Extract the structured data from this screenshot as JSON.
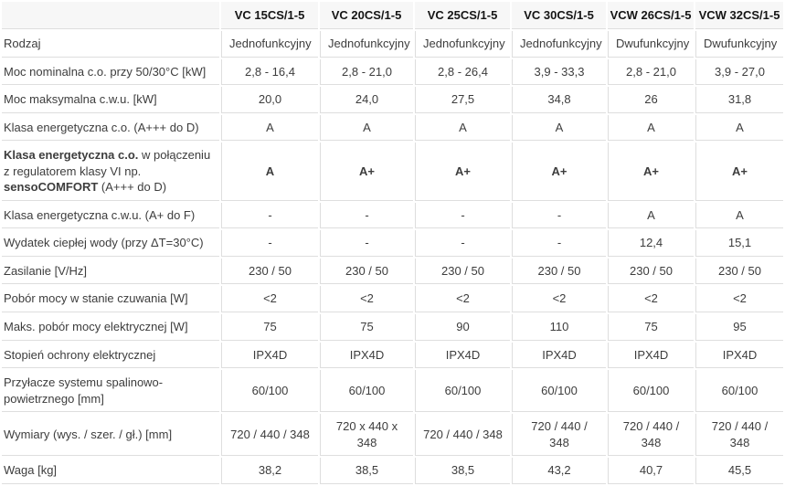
{
  "colors": {
    "header_bg": "#f7f7f7",
    "border": "#dedede",
    "text": "#3d3d3d",
    "header_text": "#151515",
    "cell_bg": "#ffffff"
  },
  "table": {
    "columns": [
      "",
      "VC 15CS/1-5",
      "VC 20CS/1-5",
      "VC 25CS/1-5",
      "VC 30CS/1-5",
      "VCW 26CS/1-5",
      "VCW 32CS/1-5"
    ],
    "rows": [
      {
        "label": "Rodzaj",
        "values": [
          "Jednofunkcyjny",
          "Jednofunkcyjny",
          "Jednofunkcyjny",
          "Jednofunkcyjny",
          "Dwufunkcyjny",
          "Dwufunkcyjny"
        ]
      },
      {
        "label": "Moc nominalna c.o. przy 50/30°C [kW]",
        "values": [
          "2,8 - 16,4",
          "2,8 - 21,0",
          "2,8 - 26,4",
          "3,9 - 33,3",
          "2,8 - 21,0",
          "3,9 - 27,0"
        ]
      },
      {
        "label": "Moc maksymalna c.w.u. [kW]",
        "values": [
          "20,0",
          "24,0",
          "27,5",
          "34,8",
          "26",
          "31,8"
        ]
      },
      {
        "label": "Klasa energetyczna c.o. (A+++ do D)",
        "values": [
          "A",
          "A",
          "A",
          "A",
          "A",
          "A"
        ]
      },
      {
        "label_parts": [
          {
            "text": "Klasa energetyczna c.o.",
            "bold": true
          },
          {
            "text": " w połączeniu z regulatorem klasy VI np. ",
            "bold": false
          },
          {
            "text": "sensoCOMFORT",
            "bold": true
          },
          {
            "text": " (A+++ do D)",
            "bold": false
          }
        ],
        "values_bold": true,
        "values": [
          "A",
          "A+",
          "A+",
          "A+",
          "A+",
          "A+"
        ]
      },
      {
        "label": "Klasa energetyczna c.w.u. (A+ do F)",
        "values": [
          "-",
          "-",
          "-",
          "-",
          "A",
          "A"
        ]
      },
      {
        "label": "Wydatek ciepłej wody (przy ΔT=30°C)",
        "values": [
          "-",
          "-",
          "-",
          "-",
          "12,4",
          "15,1"
        ]
      },
      {
        "label": "Zasilanie [V/Hz]",
        "values": [
          "230 / 50",
          "230 / 50",
          "230 / 50",
          "230 / 50",
          "230 / 50",
          "230 / 50"
        ]
      },
      {
        "label": "Pobór mocy w stanie czuwania [W]",
        "values": [
          "<2",
          "<2",
          "<2",
          "<2",
          "<2",
          "<2"
        ]
      },
      {
        "label": "Maks. pobór mocy elektrycznej [W]",
        "values": [
          "75",
          "75",
          "90",
          "110",
          "75",
          "95"
        ]
      },
      {
        "label": "Stopień ochrony elektrycznej",
        "values": [
          "IPX4D",
          "IPX4D",
          "IPX4D",
          "IPX4D",
          "IPX4D",
          "IPX4D"
        ]
      },
      {
        "label": "Przyłacze systemu spalinowo-powietrznego [mm]",
        "values": [
          "60/100",
          "60/100",
          "60/100",
          "60/100",
          "60/100",
          "60/100"
        ]
      },
      {
        "label": "Wymiary (wys. / szer. / gł.) [mm]",
        "values": [
          "720 / 440 / 348",
          "720 x 440 x 348",
          "720 / 440 / 348",
          "720 / 440 / 348",
          "720 / 440 / 348",
          "720 / 440 / 348"
        ]
      },
      {
        "label": "Waga [kg]",
        "values": [
          "38,2",
          "38,5",
          "38,5",
          "43,2",
          "40,7",
          "45,5"
        ]
      }
    ]
  }
}
